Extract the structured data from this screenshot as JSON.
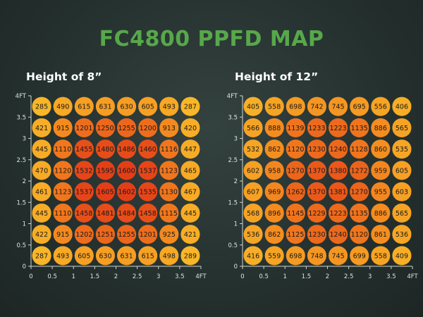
{
  "title": "FC4800 PPFD MAP",
  "colors": {
    "title": "#57a84a",
    "axis": "#cfd6d3",
    "cell_low": "#f8b628",
    "cell_mid": "#f3841e",
    "cell_high": "#e43e18",
    "text": "#1a1a1a"
  },
  "chart_data": [
    {
      "type": "heatmap",
      "title": "Height of 8”",
      "x_ticks": [
        "0",
        "0.5",
        "1",
        "1.5",
        "2",
        "2.5",
        "3",
        "3.5",
        "4FT"
      ],
      "y_ticks": [
        "0",
        "0.5",
        "1",
        "1.5",
        "2",
        "2.5",
        "3",
        "3.5",
        "4FT"
      ],
      "xlim": [
        0,
        4
      ],
      "ylim": [
        0,
        4
      ],
      "values": [
        [
          285,
          490,
          615,
          631,
          630,
          605,
          493,
          287
        ],
        [
          421,
          915,
          1201,
          1250,
          1255,
          1200,
          913,
          420
        ],
        [
          445,
          1110,
          1455,
          1480,
          1486,
          1460,
          1116,
          447
        ],
        [
          470,
          1120,
          1532,
          1595,
          1600,
          1537,
          1123,
          465
        ],
        [
          461,
          1123,
          1537,
          1605,
          1602,
          1535,
          1130,
          467
        ],
        [
          445,
          1110,
          1458,
          1481,
          1484,
          1458,
          1115,
          445
        ],
        [
          422,
          915,
          1202,
          1251,
          1255,
          1201,
          925,
          421
        ],
        [
          287,
          493,
          605,
          630,
          631,
          615,
          498,
          289
        ]
      ]
    },
    {
      "type": "heatmap",
      "title": "Height of 12”",
      "x_ticks": [
        "0",
        "0.5",
        "1",
        "1.5",
        "2",
        "2.5",
        "3",
        "3.5",
        "4FT"
      ],
      "y_ticks": [
        "0",
        "0.5",
        "1",
        "1.5",
        "2",
        "2.5",
        "3",
        "3.5",
        "4FT"
      ],
      "xlim": [
        0,
        4
      ],
      "ylim": [
        0,
        4
      ],
      "values": [
        [
          405,
          558,
          698,
          742,
          745,
          695,
          556,
          406
        ],
        [
          566,
          888,
          1139,
          1233,
          1223,
          1135,
          886,
          565
        ],
        [
          532,
          862,
          1120,
          1230,
          1240,
          1128,
          860,
          535
        ],
        [
          602,
          958,
          1270,
          1370,
          1380,
          1272,
          959,
          605
        ],
        [
          607,
          969,
          1262,
          1370,
          1381,
          1270,
          955,
          603
        ],
        [
          568,
          896,
          1145,
          1229,
          1223,
          1135,
          886,
          565
        ],
        [
          536,
          862,
          1125,
          1230,
          1240,
          1120,
          861,
          536
        ],
        [
          416,
          559,
          698,
          748,
          745,
          699,
          558,
          409
        ]
      ]
    }
  ]
}
